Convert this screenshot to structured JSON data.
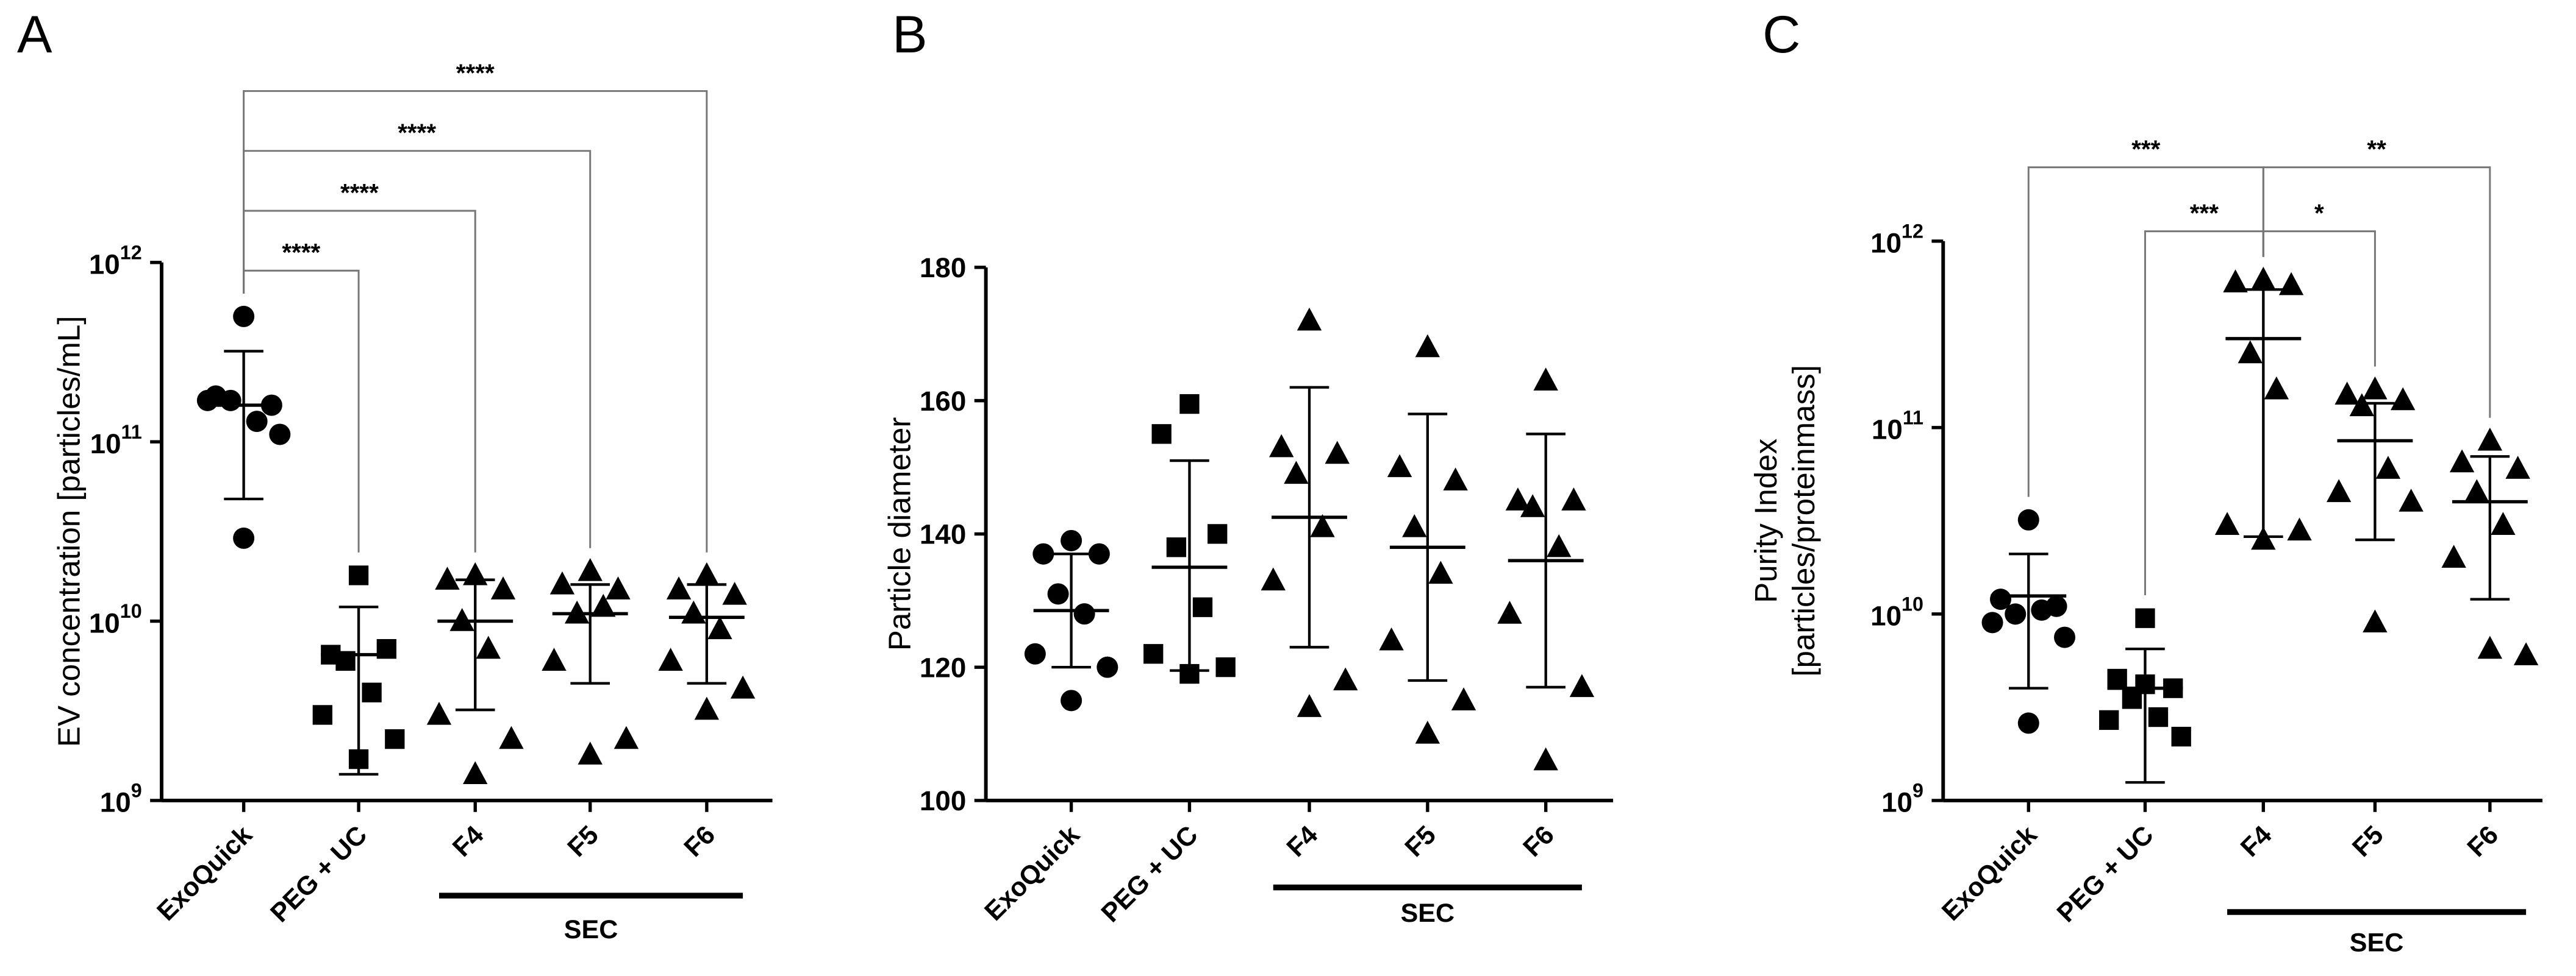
{
  "chart_data": [
    {
      "type": "dot",
      "panel": "A",
      "ylabel": [
        "EV concentration [particles/mL]"
      ],
      "log_scale": true,
      "categories": [
        "ExoQuick",
        "PEG + UC",
        "F4",
        "F5",
        "F6"
      ],
      "markers": [
        "circle",
        "square",
        "triangle",
        "triangle",
        "triangle"
      ],
      "points": [
        [
          500000000000.0,
          180000000000.0,
          160000000000.0,
          170000000000.0,
          130000000000.0,
          170000000000.0,
          110000000000.0,
          29000000000.0
        ],
        [
          18000000000.0,
          6500000000.0,
          7000000000.0,
          6000000000.0,
          4000000000.0,
          3000000000.0,
          2200000000.0,
          1700000000.0
        ],
        [
          18000000000.0,
          17000000000.0,
          15000000000.0,
          10000000000.0,
          7000000000.0,
          3000000000.0,
          2200000000.0,
          1400000000.0
        ],
        [
          19000000000.0,
          16000000000.0,
          15000000000.0,
          11000000000.0,
          12000000000.0,
          6000000000.0,
          2200000000.0,
          1800000000.0
        ],
        [
          18000000000.0,
          15000000000.0,
          14000000000.0,
          11000000000.0,
          9000000000.0,
          6000000000.0,
          4200000000.0,
          3200000000.0
        ]
      ],
      "means": [
        160000000000.0,
        6500000000.0,
        10000000000.0,
        11000000000.0,
        10500000000.0
      ],
      "whiskers_low": [
        48000000000.0,
        1400000000.0,
        3200000000.0,
        4500000000.0,
        4500000000.0
      ],
      "whiskers_high": [
        320000000000.0,
        12000000000.0,
        17000000000.0,
        16000000000.0,
        16000000000.0
      ],
      "ylim": [
        1000000000.0,
        1000000000000.0
      ],
      "yticks": [
        {
          "value": 1000000000.0,
          "label": "10",
          "exponent": "9"
        },
        {
          "value": 10000000000.0,
          "label": "10",
          "exponent": "10"
        },
        {
          "value": 100000000000.0,
          "label": "10",
          "exponent": "11"
        },
        {
          "value": 1000000000000.0,
          "label": "10",
          "exponent": "12"
        }
      ],
      "comparisons": [
        {
          "from": 0,
          "to": 1,
          "label": "****"
        },
        {
          "from": 0,
          "to": 2,
          "label": "****"
        },
        {
          "from": 0,
          "to": 3,
          "label": "****"
        },
        {
          "from": 0,
          "to": 4,
          "label": "****"
        }
      ],
      "group_label": {
        "text": "SEC",
        "from": 2,
        "to": 4
      }
    },
    {
      "type": "dot",
      "panel": "B",
      "ylabel": [
        "Particle diameter"
      ],
      "log_scale": false,
      "categories": [
        "ExoQuick",
        "PEG + UC",
        "F4",
        "F5",
        "F6"
      ],
      "markers": [
        "circle",
        "square",
        "triangle",
        "triangle",
        "triangle"
      ],
      "points": [
        [
          139,
          137,
          137,
          131,
          128,
          122,
          120,
          115
        ],
        [
          159.5,
          155,
          140,
          138,
          129,
          122,
          120,
          119
        ],
        [
          172,
          153,
          152,
          149,
          141,
          133,
          118,
          114
        ],
        [
          168,
          150,
          148,
          141,
          134,
          124,
          115,
          110
        ],
        [
          163,
          145,
          145,
          144,
          138,
          128,
          117,
          106
        ]
      ],
      "means": [
        128.5,
        135,
        142.5,
        138,
        136
      ],
      "whiskers_low": [
        120,
        119.5,
        123,
        118,
        117
      ],
      "whiskers_high": [
        137,
        151,
        162,
        158,
        155
      ],
      "ylim": [
        100,
        180
      ],
      "yticks": [
        100,
        120,
        140,
        160,
        180
      ],
      "comparisons": [],
      "group_label": {
        "text": "SEC",
        "from": 2,
        "to": 4
      }
    },
    {
      "type": "dot",
      "panel": "C",
      "ylabel": [
        "Purity Index",
        "[particles/proteinmass]"
      ],
      "log_scale": true,
      "categories": [
        "ExoQuick",
        "PEG + UC",
        "F4",
        "F5",
        "F6"
      ],
      "markers": [
        "circle",
        "square",
        "triangle",
        "triangle",
        "triangle"
      ],
      "points": [
        [
          32000000000.0,
          12000000000.0,
          11000000000.0,
          10000000000.0,
          10500000000.0,
          9000000000.0,
          7500000000.0,
          2600000000.0
        ],
        [
          9500000000.0,
          4500000000.0,
          4000000000.0,
          3500000000.0,
          2800000000.0,
          2700000000.0,
          2200000000.0,
          4200000000.0
        ],
        [
          620000000000.0,
          600000000000.0,
          580000000000.0,
          250000000000.0,
          160000000000.0,
          30000000000.0,
          28000000000.0,
          25000000000.0
        ],
        [
          160000000000.0,
          150000000000.0,
          140000000000.0,
          130000000000.0,
          60000000000.0,
          45000000000.0,
          40000000000.0,
          9000000000.0
        ],
        [
          85000000000.0,
          65000000000.0,
          60000000000.0,
          45000000000.0,
          30000000000.0,
          20000000000.0,
          6000000000.0,
          6500000000.0
        ]
      ],
      "means": [
        12500000000.0,
        4000000000.0,
        300000000000.0,
        85000000000.0,
        40000000000.0
      ],
      "whiskers_low": [
        4000000000.0,
        1250000000.0,
        26000000000.0,
        25000000000.0,
        12000000000.0
      ],
      "whiskers_high": [
        21000000000.0,
        6500000000.0,
        550000000000.0,
        135000000000.0,
        70000000000.0
      ],
      "ylim": [
        1000000000.0,
        1000000000000.0
      ],
      "yticks": [
        {
          "value": 1000000000.0,
          "label": "10",
          "exponent": "9"
        },
        {
          "value": 10000000000.0,
          "label": "10",
          "exponent": "10"
        },
        {
          "value": 100000000000.0,
          "label": "10",
          "exponent": "11"
        },
        {
          "value": 1000000000000.0,
          "label": "10",
          "exponent": "12"
        }
      ],
      "comparisons": [
        {
          "from": 0,
          "to": 2,
          "label": "***"
        },
        {
          "from": 1,
          "to": 2,
          "label": "***"
        },
        {
          "from": 2,
          "to": 4,
          "label": "**"
        },
        {
          "from": 2,
          "to": 3,
          "label": "*"
        }
      ],
      "group_label": {
        "text": "SEC",
        "from": 2,
        "to": 4
      }
    }
  ]
}
